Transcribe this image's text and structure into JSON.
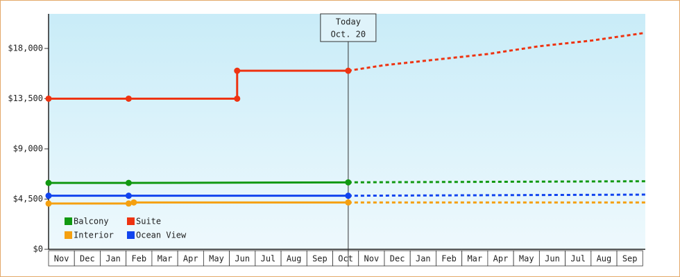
{
  "chart_data": {
    "type": "line",
    "x_categories": [
      "Nov",
      "Dec",
      "Jan",
      "Feb",
      "Mar",
      "Apr",
      "May",
      "Jun",
      "Jul",
      "Aug",
      "Sep",
      "Oct",
      "Nov",
      "Dec",
      "Jan",
      "Feb",
      "Mar",
      "Apr",
      "May",
      "Jun",
      "Jul",
      "Aug",
      "Sep"
    ],
    "xlim": [
      0,
      23.1
    ],
    "ylim": [
      0,
      21100
    ],
    "yticks": [
      {
        "value": 0,
        "label": "$0"
      },
      {
        "value": 4500,
        "label": "$4,500"
      },
      {
        "value": 9000,
        "label": "$9,000"
      },
      {
        "value": 13500,
        "label": "$13,500"
      },
      {
        "value": 18000,
        "label": "$18,000"
      }
    ],
    "annotation": {
      "x": 11.6,
      "lines": [
        "Today",
        "Oct. 20"
      ]
    },
    "series": [
      {
        "name": "Balcony",
        "color": "#119911",
        "x": [
          0,
          3.1,
          11.6
        ],
        "values": [
          5950,
          5950,
          6000
        ],
        "forecast_x": [
          11.6,
          23.1
        ],
        "forecast_values": [
          6000,
          6100
        ]
      },
      {
        "name": "Suite",
        "color": "#ee3311",
        "x": [
          0,
          3.1,
          7.3,
          7.3,
          11.6
        ],
        "values": [
          13500,
          13500,
          13500,
          16000,
          16000
        ],
        "forecast_x": [
          11.6,
          13,
          15,
          17,
          19,
          21,
          23.1
        ],
        "forecast_values": [
          16000,
          16500,
          17000,
          17500,
          18200,
          18700,
          19400
        ]
      },
      {
        "name": "Interior",
        "color": "#f5a010",
        "x": [
          0,
          3.1,
          3.3,
          11.6
        ],
        "values": [
          4100,
          4100,
          4200,
          4200
        ],
        "forecast_x": [
          11.6,
          23.1
        ],
        "forecast_values": [
          4200,
          4200
        ]
      },
      {
        "name": "Ocean View",
        "color": "#1144ee",
        "x": [
          0,
          3.1,
          11.6
        ],
        "values": [
          4800,
          4800,
          4800
        ],
        "forecast_x": [
          11.6,
          23.1
        ],
        "forecast_values": [
          4800,
          4900
        ]
      }
    ]
  }
}
